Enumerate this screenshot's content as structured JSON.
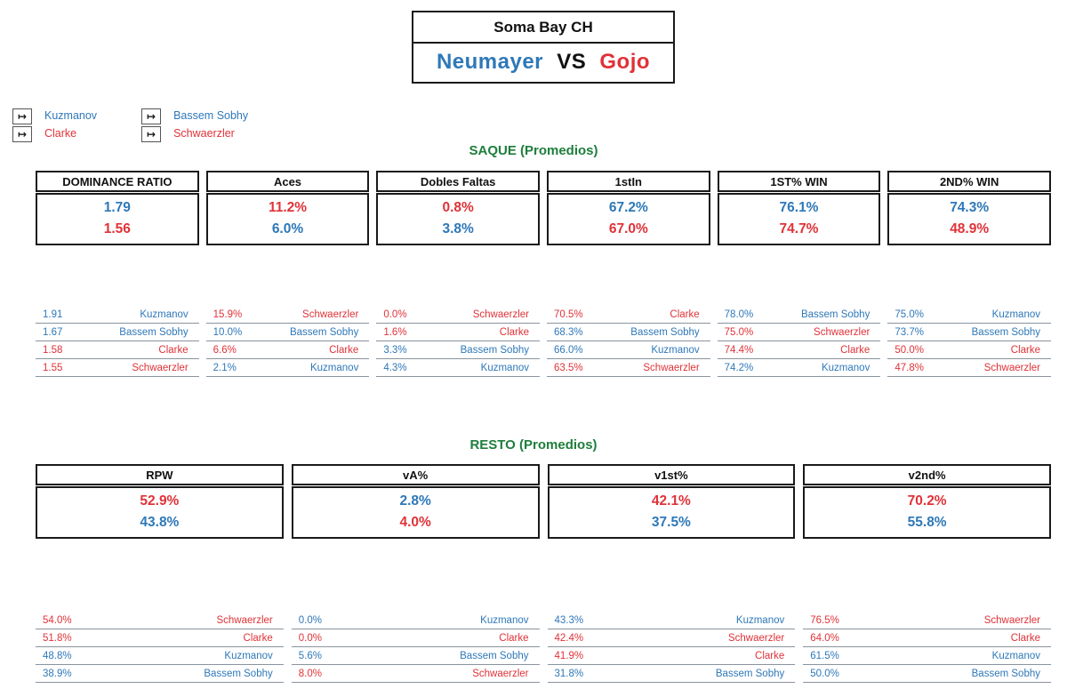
{
  "colors": {
    "blue": "#2E78B8",
    "red": "#E03238",
    "green": "#1E7E3C"
  },
  "header": {
    "tournament": "Soma Bay CH",
    "player1": "Neumayer",
    "vs": "VS",
    "player2": "Gojo"
  },
  "icons": {
    "legend_arrow": "↦"
  },
  "legend": {
    "groups": [
      {
        "items": [
          {
            "label": "Kuzmanov",
            "color": "blue"
          },
          {
            "label": "Clarke",
            "color": "red"
          }
        ]
      },
      {
        "items": [
          {
            "label": "Bassem Sobhy",
            "color": "blue"
          },
          {
            "label": "Schwaerzler",
            "color": "red"
          }
        ]
      }
    ]
  },
  "sections": [
    {
      "id": "saque",
      "title": "SAQUE (Promedios)",
      "columns": 6,
      "stats": [
        {
          "label": "DOMINANCE RATIO",
          "values": [
            {
              "text": "1.79",
              "color": "blue"
            },
            {
              "text": "1.56",
              "color": "red"
            }
          ],
          "ranking": [
            {
              "value": "1.91",
              "name": "Kuzmanov",
              "color": "blue"
            },
            {
              "value": "1.67",
              "name": "Bassem Sobhy",
              "color": "blue"
            },
            {
              "value": "1.58",
              "name": "Clarke",
              "color": "red"
            },
            {
              "value": "1.55",
              "name": "Schwaerzler",
              "color": "red"
            }
          ]
        },
        {
          "label": "Aces",
          "values": [
            {
              "text": "11.2%",
              "color": "red"
            },
            {
              "text": "6.0%",
              "color": "blue"
            }
          ],
          "ranking": [
            {
              "value": "15.9%",
              "name": "Schwaerzler",
              "color": "red"
            },
            {
              "value": "10.0%",
              "name": "Bassem Sobhy",
              "color": "blue"
            },
            {
              "value": "6.6%",
              "name": "Clarke",
              "color": "red"
            },
            {
              "value": "2.1%",
              "name": "Kuzmanov",
              "color": "blue"
            }
          ]
        },
        {
          "label": "Dobles Faltas",
          "values": [
            {
              "text": "0.8%",
              "color": "red"
            },
            {
              "text": "3.8%",
              "color": "blue"
            }
          ],
          "ranking": [
            {
              "value": "0.0%",
              "name": "Schwaerzler",
              "color": "red"
            },
            {
              "value": "1.6%",
              "name": "Clarke",
              "color": "red"
            },
            {
              "value": "3.3%",
              "name": "Bassem Sobhy",
              "color": "blue"
            },
            {
              "value": "4.3%",
              "name": "Kuzmanov",
              "color": "blue"
            }
          ]
        },
        {
          "label": "1stIn",
          "values": [
            {
              "text": "67.2%",
              "color": "blue"
            },
            {
              "text": "67.0%",
              "color": "red"
            }
          ],
          "ranking": [
            {
              "value": "70.5%",
              "name": "Clarke",
              "color": "red"
            },
            {
              "value": "68.3%",
              "name": "Bassem Sobhy",
              "color": "blue"
            },
            {
              "value": "66.0%",
              "name": "Kuzmanov",
              "color": "blue"
            },
            {
              "value": "63.5%",
              "name": "Schwaerzler",
              "color": "red"
            }
          ]
        },
        {
          "label": "1ST% WIN",
          "values": [
            {
              "text": "76.1%",
              "color": "blue"
            },
            {
              "text": "74.7%",
              "color": "red"
            }
          ],
          "ranking": [
            {
              "value": "78.0%",
              "name": "Bassem Sobhy",
              "color": "blue"
            },
            {
              "value": "75.0%",
              "name": "Schwaerzler",
              "color": "red"
            },
            {
              "value": "74.4%",
              "name": "Clarke",
              "color": "red"
            },
            {
              "value": "74.2%",
              "name": "Kuzmanov",
              "color": "blue"
            }
          ]
        },
        {
          "label": "2ND% WIN",
          "values": [
            {
              "text": "74.3%",
              "color": "blue"
            },
            {
              "text": "48.9%",
              "color": "red"
            }
          ],
          "ranking": [
            {
              "value": "75.0%",
              "name": "Kuzmanov",
              "color": "blue"
            },
            {
              "value": "73.7%",
              "name": "Bassem Sobhy",
              "color": "blue"
            },
            {
              "value": "50.0%",
              "name": "Clarke",
              "color": "red"
            },
            {
              "value": "47.8%",
              "name": "Schwaerzler",
              "color": "red"
            }
          ]
        }
      ]
    },
    {
      "id": "resto",
      "title": "RESTO (Promedios)",
      "columns": 4,
      "stats": [
        {
          "label": "RPW",
          "values": [
            {
              "text": "52.9%",
              "color": "red"
            },
            {
              "text": "43.8%",
              "color": "blue"
            }
          ],
          "ranking": [
            {
              "value": "54.0%",
              "name": "Schwaerzler",
              "color": "red"
            },
            {
              "value": "51.8%",
              "name": "Clarke",
              "color": "red"
            },
            {
              "value": "48.8%",
              "name": "Kuzmanov",
              "color": "blue"
            },
            {
              "value": "38.9%",
              "name": "Bassem Sobhy",
              "color": "blue"
            }
          ]
        },
        {
          "label": "vA%",
          "values": [
            {
              "text": "2.8%",
              "color": "blue"
            },
            {
              "text": "4.0%",
              "color": "red"
            }
          ],
          "ranking": [
            {
              "value": "0.0%",
              "name": "Kuzmanov",
              "color": "blue"
            },
            {
              "value": "0.0%",
              "name": "Clarke",
              "color": "red"
            },
            {
              "value": "5.6%",
              "name": "Bassem Sobhy",
              "color": "blue"
            },
            {
              "value": "8.0%",
              "name": "Schwaerzler",
              "color": "red"
            }
          ]
        },
        {
          "label": "v1st%",
          "values": [
            {
              "text": "42.1%",
              "color": "red"
            },
            {
              "text": "37.5%",
              "color": "blue"
            }
          ],
          "ranking": [
            {
              "value": "43.3%",
              "name": "Kuzmanov",
              "color": "blue"
            },
            {
              "value": "42.4%",
              "name": "Schwaerzler",
              "color": "red"
            },
            {
              "value": "41.9%",
              "name": "Clarke",
              "color": "red"
            },
            {
              "value": "31.8%",
              "name": "Bassem Sobhy",
              "color": "blue"
            }
          ]
        },
        {
          "label": "v2nd%",
          "values": [
            {
              "text": "70.2%",
              "color": "red"
            },
            {
              "text": "55.8%",
              "color": "blue"
            }
          ],
          "ranking": [
            {
              "value": "76.5%",
              "name": "Schwaerzler",
              "color": "red"
            },
            {
              "value": "64.0%",
              "name": "Clarke",
              "color": "red"
            },
            {
              "value": "61.5%",
              "name": "Kuzmanov",
              "color": "blue"
            },
            {
              "value": "50.0%",
              "name": "Bassem Sobhy",
              "color": "blue"
            }
          ]
        }
      ]
    }
  ]
}
